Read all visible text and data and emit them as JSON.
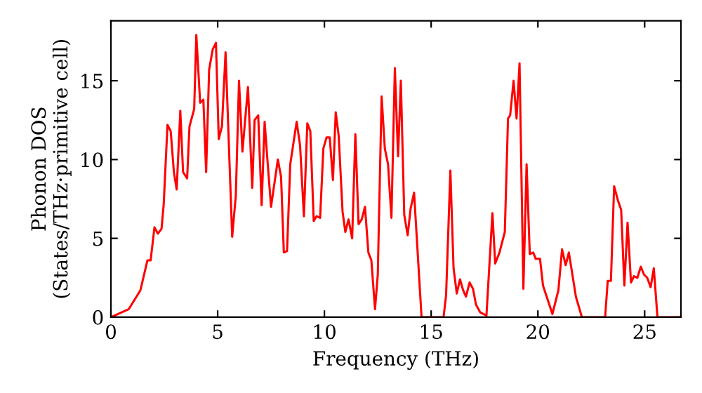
{
  "chart_data": {
    "type": "line",
    "xlabel": "Frequency (THz)",
    "ylabel": "Phonon DOS\n(States/THz·primitive cell)",
    "xlim": [
      0,
      26.7
    ],
    "ylim": [
      0,
      18.8
    ],
    "xticks": [
      0,
      5,
      10,
      15,
      20,
      25
    ],
    "yticks": [
      0,
      5,
      10,
      15
    ],
    "grid": false,
    "legend": false,
    "marker": "none",
    "line_style": "solid",
    "series": [
      {
        "color": "#ff0000",
        "x": [
          0,
          0.83,
          1.38,
          1.71,
          1.86,
          2.04,
          2.2,
          2.37,
          2.47,
          2.65,
          2.8,
          2.95,
          3.08,
          3.25,
          3.38,
          3.57,
          3.68,
          3.9,
          4.0,
          4.18,
          4.33,
          4.46,
          4.6,
          4.77,
          4.92,
          5.05,
          5.2,
          5.37,
          5.68,
          5.85,
          6.0,
          6.16,
          6.42,
          6.62,
          6.73,
          6.9,
          7.06,
          7.2,
          7.33,
          7.5,
          7.82,
          7.97,
          8.1,
          8.25,
          8.4,
          8.7,
          8.86,
          9.04,
          9.2,
          9.34,
          9.5,
          9.63,
          9.8,
          9.95,
          10.1,
          10.25,
          10.4,
          10.53,
          10.67,
          10.85,
          10.98,
          11.13,
          11.3,
          11.45,
          11.6,
          11.75,
          11.9,
          12.06,
          12.2,
          12.37,
          12.5,
          12.68,
          12.83,
          12.98,
          13.14,
          13.3,
          13.45,
          13.58,
          13.74,
          13.9,
          14.04,
          14.2,
          14.55,
          15.58,
          15.7,
          15.9,
          16.05,
          16.2,
          16.35,
          16.5,
          16.63,
          16.8,
          16.96,
          17.1,
          17.3,
          17.59,
          17.87,
          18.0,
          18.2,
          18.45,
          18.6,
          18.7,
          18.86,
          19.0,
          19.14,
          19.32,
          19.47,
          19.62,
          19.78,
          19.9,
          20.1,
          20.24,
          20.46,
          20.68,
          20.96,
          21.13,
          21.3,
          21.45,
          21.78,
          22.06,
          23.15,
          23.27,
          23.42,
          23.57,
          23.75,
          23.9,
          24.05,
          24.2,
          24.36,
          24.5,
          24.66,
          24.82,
          24.97,
          25.12,
          25.28,
          25.43,
          25.6,
          26.7
        ],
        "values": [
          0,
          0.5,
          1.7,
          3.6,
          3.6,
          5.7,
          5.3,
          5.6,
          7.1,
          12.2,
          11.8,
          9.2,
          8.1,
          13.1,
          9.2,
          8.8,
          12.1,
          13.2,
          17.9,
          13.6,
          13.8,
          9.2,
          15.7,
          17.0,
          17.4,
          11.3,
          12.1,
          16.8,
          5.1,
          7.7,
          15.0,
          10.5,
          14.6,
          8.2,
          12.5,
          12.8,
          7.1,
          12.4,
          10.0,
          7.0,
          10.0,
          8.9,
          4.1,
          4.2,
          9.7,
          12.4,
          10.9,
          6.4,
          12.3,
          11.8,
          6.1,
          6.4,
          6.3,
          10.7,
          11.4,
          11.4,
          8.7,
          13.0,
          11.5,
          6.7,
          5.4,
          6.2,
          5.0,
          11.6,
          5.9,
          6.2,
          7.0,
          4.1,
          3.6,
          0.5,
          2.7,
          14.0,
          10.7,
          9.7,
          6.3,
          15.8,
          10.2,
          15.0,
          6.5,
          5.2,
          6.9,
          7.9,
          0,
          0,
          1.4,
          9.3,
          3.1,
          1.5,
          2.4,
          1.7,
          1.3,
          2.2,
          1.8,
          0.8,
          0.3,
          0.1,
          6.6,
          3.4,
          4.1,
          5.4,
          12.6,
          12.8,
          15.0,
          12.6,
          16.1,
          1.8,
          9.7,
          4.0,
          4.1,
          3.7,
          3.7,
          2.0,
          1.1,
          0.2,
          1.7,
          4.3,
          3.3,
          4.1,
          1.3,
          0,
          0,
          2.3,
          2.3,
          8.3,
          7.4,
          6.8,
          2.0,
          6.0,
          2.2,
          2.6,
          2.5,
          3.2,
          2.7,
          2.5,
          1.9,
          3.1,
          0,
          0
        ]
      }
    ]
  }
}
